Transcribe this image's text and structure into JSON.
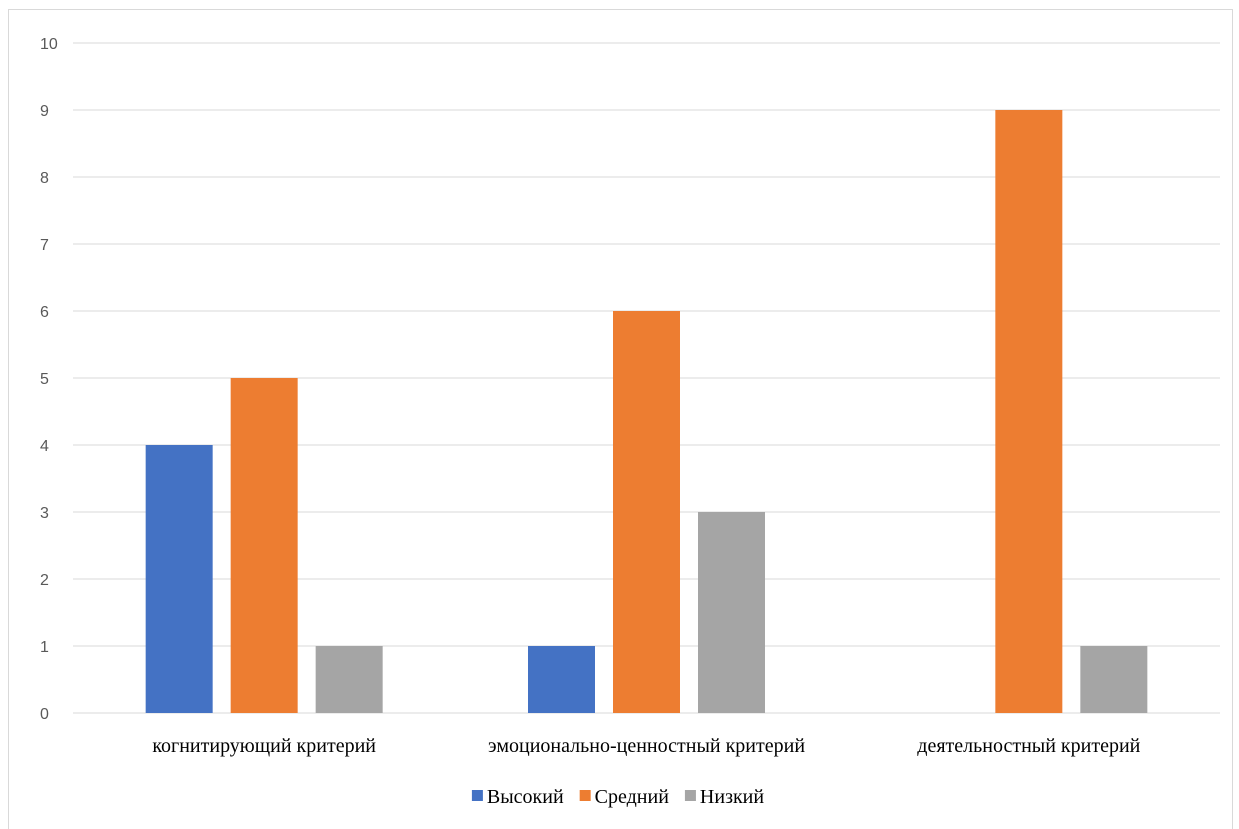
{
  "chart_data": {
    "type": "bar",
    "categories": [
      "когнитирующий критерий",
      "эмоционально-ценностный критерий",
      "деятельностный критерий"
    ],
    "series": [
      {
        "name": "Высокий",
        "values": [
          4,
          1,
          0
        ],
        "color": "#4472c4"
      },
      {
        "name": "Средний",
        "values": [
          5,
          6,
          9
        ],
        "color": "#ed7d31"
      },
      {
        "name": "Низкий",
        "values": [
          1,
          3,
          1
        ],
        "color": "#a5a5a5"
      }
    ],
    "ylim": [
      0,
      10
    ],
    "yticks": [
      0,
      1,
      2,
      3,
      4,
      5,
      6,
      7,
      8,
      9,
      10
    ],
    "grid": true,
    "legend_position": "bottom",
    "gridline_color": "#d9d9d9"
  }
}
